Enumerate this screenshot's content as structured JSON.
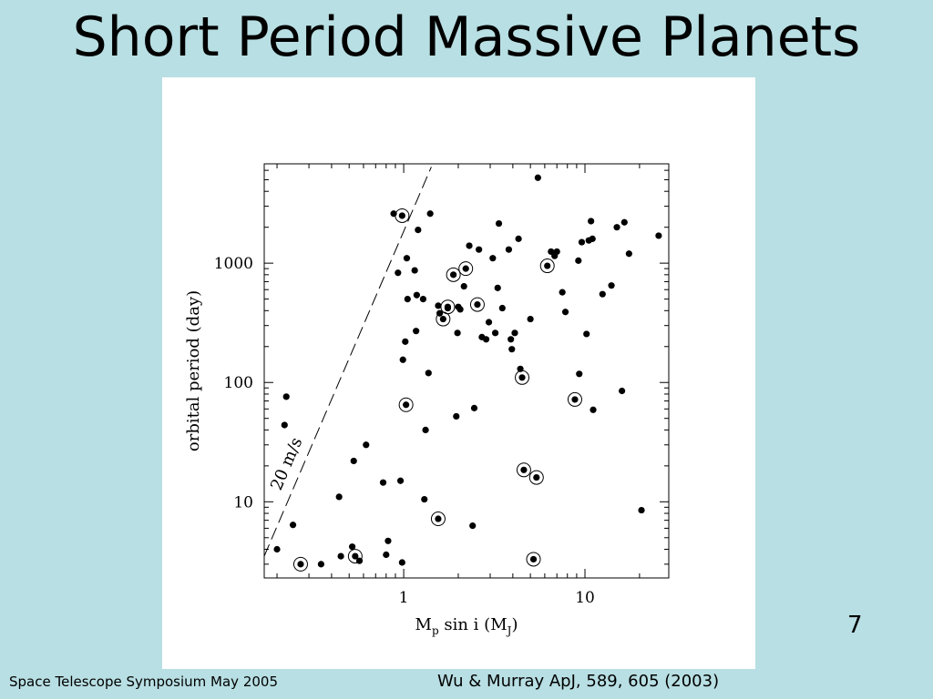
{
  "slide": {
    "title": "Short Period Massive Planets",
    "page_number": "7",
    "footer_left": "Space Telescope Symposium May 2005",
    "footer_right": "Wu & Murray ApJ, 589, 605 (2003)",
    "background_color": "#b8dfe3"
  },
  "chart_data": {
    "type": "scatter",
    "xlabel": "M_p sin i (M_J)",
    "ylabel": "orbital period (day)",
    "x_scale": "log",
    "y_scale": "log",
    "xlim": [
      0.17,
      29
    ],
    "ylim": [
      2.3,
      6800
    ],
    "x_ticks": [
      1,
      10
    ],
    "x_tick_labels": [
      "1",
      "10"
    ],
    "y_ticks": [
      10,
      100,
      1000
    ],
    "y_tick_labels": [
      "10",
      "100",
      "1000"
    ],
    "grid": false,
    "reference_line": {
      "label": "20 m/s",
      "points": [
        [
          0.17,
          3.5
        ],
        [
          1.42,
          6400
        ]
      ]
    },
    "points": [
      {
        "x": 0.2,
        "y": 4.0
      },
      {
        "x": 0.22,
        "y": 44
      },
      {
        "x": 0.225,
        "y": 76
      },
      {
        "x": 0.245,
        "y": 6.4
      },
      {
        "x": 0.35,
        "y": 3.0
      },
      {
        "x": 0.44,
        "y": 11
      },
      {
        "x": 0.45,
        "y": 3.5
      },
      {
        "x": 0.52,
        "y": 4.2
      },
      {
        "x": 0.53,
        "y": 22
      },
      {
        "x": 0.57,
        "y": 3.2
      },
      {
        "x": 0.62,
        "y": 30
      },
      {
        "x": 0.77,
        "y": 14.5
      },
      {
        "x": 0.8,
        "y": 3.6
      },
      {
        "x": 0.82,
        "y": 4.7
      },
      {
        "x": 0.88,
        "y": 2600
      },
      {
        "x": 0.93,
        "y": 830
      },
      {
        "x": 0.96,
        "y": 15
      },
      {
        "x": 0.98,
        "y": 3.1
      },
      {
        "x": 0.99,
        "y": 155
      },
      {
        "x": 1.02,
        "y": 220
      },
      {
        "x": 1.04,
        "y": 1100
      },
      {
        "x": 1.05,
        "y": 500
      },
      {
        "x": 1.15,
        "y": 870
      },
      {
        "x": 1.17,
        "y": 270
      },
      {
        "x": 1.18,
        "y": 540
      },
      {
        "x": 1.2,
        "y": 1900
      },
      {
        "x": 1.28,
        "y": 500
      },
      {
        "x": 1.3,
        "y": 10.5
      },
      {
        "x": 1.32,
        "y": 40
      },
      {
        "x": 1.37,
        "y": 120
      },
      {
        "x": 1.4,
        "y": 2600
      },
      {
        "x": 1.55,
        "y": 440
      },
      {
        "x": 1.58,
        "y": 380
      },
      {
        "x": 1.75,
        "y": 420
      },
      {
        "x": 1.95,
        "y": 52
      },
      {
        "x": 1.98,
        "y": 260
      },
      {
        "x": 2.0,
        "y": 430
      },
      {
        "x": 2.05,
        "y": 410
      },
      {
        "x": 2.15,
        "y": 640
      },
      {
        "x": 2.3,
        "y": 1400
      },
      {
        "x": 2.4,
        "y": 6.3
      },
      {
        "x": 2.45,
        "y": 61
      },
      {
        "x": 2.6,
        "y": 1300
      },
      {
        "x": 2.7,
        "y": 240
      },
      {
        "x": 2.85,
        "y": 230
      },
      {
        "x": 2.95,
        "y": 320
      },
      {
        "x": 3.1,
        "y": 1100
      },
      {
        "x": 3.2,
        "y": 260
      },
      {
        "x": 3.3,
        "y": 620
      },
      {
        "x": 3.35,
        "y": 2150
      },
      {
        "x": 3.5,
        "y": 420
      },
      {
        "x": 3.8,
        "y": 1300
      },
      {
        "x": 3.9,
        "y": 230
      },
      {
        "x": 3.95,
        "y": 190
      },
      {
        "x": 4.1,
        "y": 260
      },
      {
        "x": 4.3,
        "y": 1600
      },
      {
        "x": 4.4,
        "y": 130
      },
      {
        "x": 5.0,
        "y": 340
      },
      {
        "x": 5.5,
        "y": 5200
      },
      {
        "x": 6.5,
        "y": 1250
      },
      {
        "x": 6.8,
        "y": 1150
      },
      {
        "x": 7.0,
        "y": 1250
      },
      {
        "x": 7.5,
        "y": 570
      },
      {
        "x": 7.8,
        "y": 390
      },
      {
        "x": 9.2,
        "y": 1050
      },
      {
        "x": 9.3,
        "y": 118
      },
      {
        "x": 9.6,
        "y": 1500
      },
      {
        "x": 10.2,
        "y": 255
      },
      {
        "x": 10.5,
        "y": 1550
      },
      {
        "x": 10.8,
        "y": 2250
      },
      {
        "x": 11.0,
        "y": 1600
      },
      {
        "x": 11.1,
        "y": 59
      },
      {
        "x": 12.5,
        "y": 550
      },
      {
        "x": 14.0,
        "y": 650
      },
      {
        "x": 15.0,
        "y": 2000
      },
      {
        "x": 16.0,
        "y": 85
      },
      {
        "x": 16.5,
        "y": 2200
      },
      {
        "x": 17.5,
        "y": 1200
      },
      {
        "x": 20.5,
        "y": 8.5
      },
      {
        "x": 25.5,
        "y": 1700
      }
    ],
    "circled_points": [
      {
        "x": 0.27,
        "y": 3.0
      },
      {
        "x": 0.54,
        "y": 3.5
      },
      {
        "x": 0.98,
        "y": 2500
      },
      {
        "x": 1.03,
        "y": 65
      },
      {
        "x": 1.55,
        "y": 7.2
      },
      {
        "x": 1.65,
        "y": 340
      },
      {
        "x": 1.75,
        "y": 430
      },
      {
        "x": 1.88,
        "y": 800
      },
      {
        "x": 2.2,
        "y": 900
      },
      {
        "x": 2.55,
        "y": 450
      },
      {
        "x": 4.5,
        "y": 110
      },
      {
        "x": 4.6,
        "y": 18.5
      },
      {
        "x": 5.2,
        "y": 3.3
      },
      {
        "x": 5.4,
        "y": 16
      },
      {
        "x": 6.2,
        "y": 950
      },
      {
        "x": 8.8,
        "y": 72
      }
    ]
  }
}
